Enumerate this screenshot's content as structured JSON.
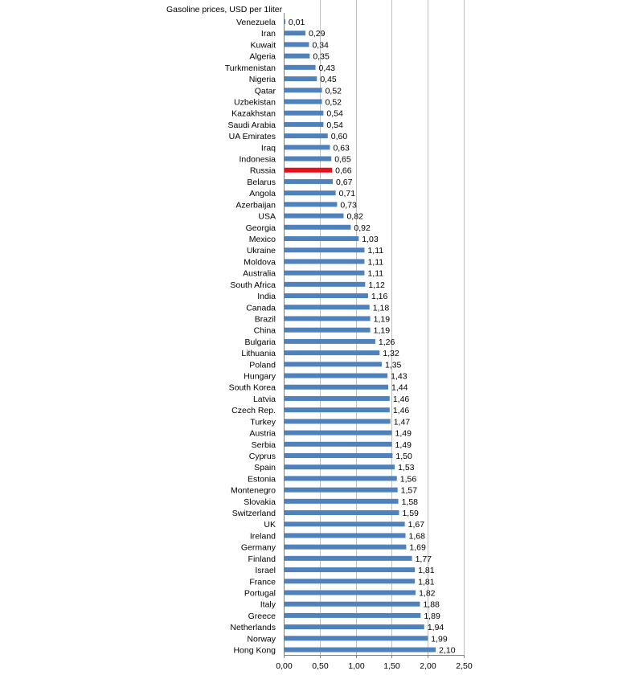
{
  "chart_data": {
    "type": "bar",
    "orientation": "horizontal",
    "title": "Gasoline prices, USD per 1liter",
    "xlabel": "",
    "ylabel": "",
    "xlim": [
      0,
      2.5
    ],
    "xticks": [
      "0,00",
      "0,50",
      "1,00",
      "1,50",
      "2,00",
      "2,50"
    ],
    "grid": true,
    "bar_color": "#4F81BD",
    "highlight_color": "#E2141B",
    "highlight_category": "Russia",
    "categories": [
      "Venezuela",
      "Iran",
      "Kuwait",
      "Algeria",
      "Turkmenistan",
      "Nigeria",
      "Qatar",
      "Uzbekistan",
      "Kazakhstan",
      "Saudi Arabia",
      "UA Emirates",
      "Iraq",
      "Indonesia",
      "Russia",
      "Belarus",
      "Angola",
      "Azerbaijan",
      "USA",
      "Georgia",
      "Mexico",
      "Ukraine",
      "Moldova",
      "Australia",
      "South Africa",
      "India",
      "Canada",
      "Brazil",
      "China",
      "Bulgaria",
      "Lithuania",
      "Poland",
      "Hungary",
      "South Korea",
      "Latvia",
      "Czech Rep.",
      "Turkey",
      "Austria",
      "Serbia",
      "Cyprus",
      "Spain",
      "Estonia",
      "Montenegro",
      "Slovakia",
      "Switzerland",
      "UK",
      "Ireland",
      "Germany",
      "Finland",
      "Israel",
      "France",
      "Portugal",
      "Italy",
      "Greece",
      "Netherlands",
      "Norway",
      "Hong Kong"
    ],
    "values": [
      0.01,
      0.29,
      0.34,
      0.35,
      0.43,
      0.45,
      0.52,
      0.52,
      0.54,
      0.54,
      0.6,
      0.63,
      0.65,
      0.66,
      0.67,
      0.71,
      0.73,
      0.82,
      0.92,
      1.03,
      1.11,
      1.11,
      1.11,
      1.12,
      1.16,
      1.18,
      1.19,
      1.19,
      1.26,
      1.32,
      1.35,
      1.43,
      1.44,
      1.46,
      1.46,
      1.47,
      1.49,
      1.49,
      1.5,
      1.53,
      1.56,
      1.57,
      1.58,
      1.59,
      1.67,
      1.68,
      1.69,
      1.77,
      1.81,
      1.81,
      1.82,
      1.88,
      1.89,
      1.94,
      1.99,
      2.1
    ],
    "value_labels": [
      "0,01",
      "0,29",
      "0,34",
      "0,35",
      "0,43",
      "0,45",
      "0,52",
      "0,52",
      "0,54",
      "0,54",
      "0,60",
      "0,63",
      "0,65",
      "0,66",
      "0,67",
      "0,71",
      "0,73",
      "0,82",
      "0,92",
      "1,03",
      "1,11",
      "1,11",
      "1,11",
      "1,12",
      "1,16",
      "1,18",
      "1,19",
      "1,19",
      "1,26",
      "1,32",
      "1,35",
      "1,43",
      "1,44",
      "1,46",
      "1,46",
      "1,47",
      "1,49",
      "1,49",
      "1,50",
      "1,53",
      "1,56",
      "1,57",
      "1,58",
      "1,59",
      "1,67",
      "1,68",
      "1,69",
      "1,77",
      "1,81",
      "1,81",
      "1,82",
      "1,88",
      "1,89",
      "1,94",
      "1,99",
      "2,10"
    ]
  }
}
